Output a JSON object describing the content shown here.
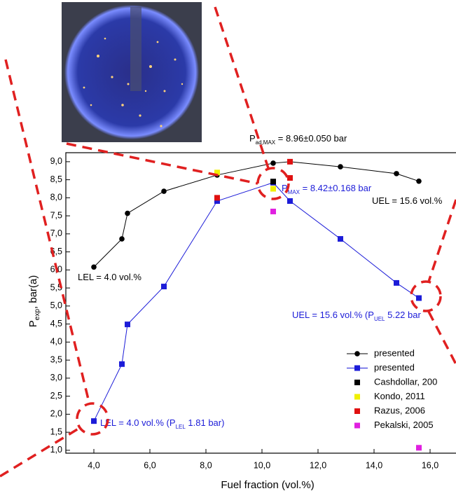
{
  "chart_data": {
    "type": "line",
    "xlabel": "Fuel fraction (vol.%)",
    "ylabel": {
      "main": "P",
      "sub": "exp",
      "rest": ", bar(a)"
    },
    "xlim": [
      3,
      17
    ],
    "ylim": [
      0.92,
      9.25
    ],
    "xticks": [
      {
        "value": 4,
        "label": "4,0"
      },
      {
        "value": 6,
        "label": "6,0"
      },
      {
        "value": 8,
        "label": "8,0"
      },
      {
        "value": 10,
        "label": "10,0"
      },
      {
        "value": 12,
        "label": "12,0"
      },
      {
        "value": 14,
        "label": "14,0"
      },
      {
        "value": 16,
        "label": "16,0"
      }
    ],
    "yticks": [
      {
        "value": 1,
        "label": "1,0"
      },
      {
        "value": 1.5,
        "label": "1,5"
      },
      {
        "value": 2,
        "label": "2,0"
      },
      {
        "value": 2.5,
        "label": "2,5"
      },
      {
        "value": 3,
        "label": "3,0"
      },
      {
        "value": 3.5,
        "label": "3,5"
      },
      {
        "value": 4,
        "label": "4,0"
      },
      {
        "value": 4.5,
        "label": "4,5"
      },
      {
        "value": 5,
        "label": "5,0"
      },
      {
        "value": 5.5,
        "label": "5,5"
      },
      {
        "value": 6,
        "label": "6,0"
      },
      {
        "value": 6.5,
        "label": "6,5"
      },
      {
        "value": 7,
        "label": "7,0"
      },
      {
        "value": 7.5,
        "label": "7,5"
      },
      {
        "value": 8,
        "label": "8,0"
      },
      {
        "value": 8.5,
        "label": "8,5"
      },
      {
        "value": 9,
        "label": "9,0"
      }
    ],
    "series": [
      {
        "name": "presented",
        "color": "#000000",
        "marker": "circle",
        "line": true,
        "x": [
          4.0,
          5.0,
          5.2,
          6.5,
          8.4,
          10.4,
          11.0,
          12.8,
          14.8,
          15.6
        ],
        "values": [
          6.08,
          6.86,
          7.57,
          8.18,
          8.63,
          8.96,
          9.0,
          8.86,
          8.67,
          8.46
        ]
      },
      {
        "name": "presented",
        "color": "#1c1cd8",
        "marker": "square",
        "line": true,
        "x": [
          4.0,
          5.0,
          5.2,
          6.5,
          8.4,
          10.4,
          11.0,
          12.8,
          14.8,
          15.6
        ],
        "values": [
          1.81,
          3.39,
          4.49,
          5.54,
          7.91,
          8.42,
          7.91,
          6.86,
          5.64,
          5.22
        ]
      },
      {
        "name": "Cashdollar, 200",
        "color": "#000000",
        "marker": "square",
        "line": false,
        "x": [
          10.4
        ],
        "values": [
          8.45
        ]
      },
      {
        "name": "Kondo, 2011",
        "color": "#f0f000",
        "marker": "square",
        "line": false,
        "x": [
          8.4,
          10.4
        ],
        "values": [
          8.7,
          8.25
        ]
      },
      {
        "name": "Razus, 2006",
        "color": "#e01010",
        "marker": "square",
        "line": false,
        "x": [
          11.0,
          11.0,
          8.4
        ],
        "values": [
          9.0,
          8.55,
          8.0
        ]
      },
      {
        "name": "Pekalski, 2005",
        "color": "#e020e0",
        "marker": "square",
        "line": false,
        "x": [
          10.4,
          15.6
        ],
        "values": [
          7.62,
          1.07
        ]
      }
    ],
    "annotations": [
      {
        "main": "P",
        "sub": "ad,MAX",
        "rest": " = 8.96±0.050 bar"
      },
      {
        "main": "P",
        "sub": "MAX",
        "rest": " = 8.42±0.168 bar"
      },
      {
        "main": "UEL = 15.6 vol.%"
      },
      {
        "main": "LEL = 4.0 vol.%"
      },
      {
        "main": "UEL = 15.6 vol.% (P",
        "sub": "UEL",
        "rest": " 5.22 bar"
      },
      {
        "main": "LEL = 4.0 vol.% (P",
        "sub": "LEL",
        "rest": " 1.81 bar)"
      }
    ]
  }
}
